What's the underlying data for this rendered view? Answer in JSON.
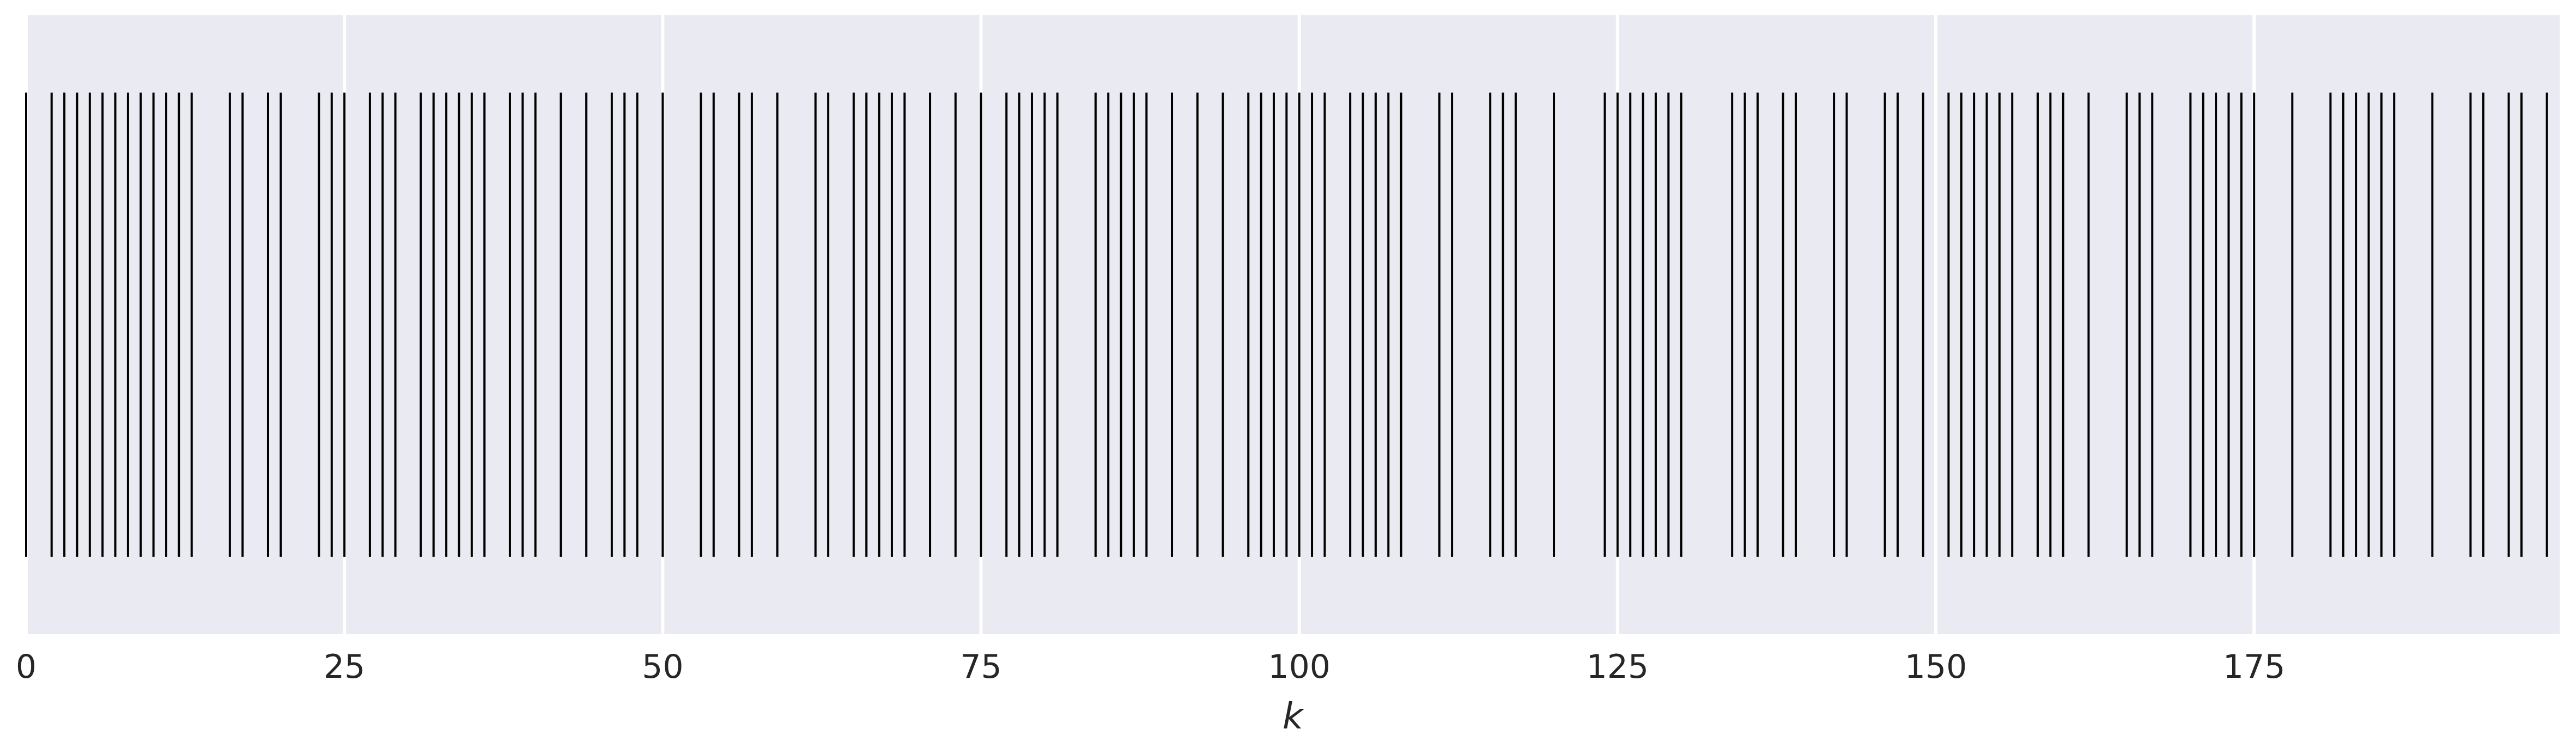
{
  "chart_data": {
    "type": "eventplot",
    "xlabel": "k",
    "xlim": [
      0,
      199
    ],
    "ylim": [
      0.5,
      1.5
    ],
    "xticks": [
      0,
      25,
      50,
      75,
      100,
      125,
      150,
      175
    ],
    "xtick_labels": [
      "0",
      "25",
      "50",
      "75",
      "100",
      "125",
      "150",
      "175"
    ],
    "grid": true,
    "event_line": {
      "center": 1.0,
      "length": 0.75
    },
    "events": [
      0,
      2,
      3,
      4,
      5,
      6,
      7,
      8,
      9,
      10,
      11,
      12,
      13,
      16,
      17,
      19,
      20,
      23,
      24,
      25,
      27,
      28,
      29,
      31,
      32,
      33,
      34,
      35,
      36,
      38,
      39,
      40,
      42,
      44,
      46,
      47,
      48,
      50,
      53,
      54,
      56,
      57,
      59,
      62,
      63,
      65,
      66,
      67,
      68,
      69,
      71,
      73,
      75,
      77,
      78,
      79,
      80,
      81,
      84,
      85,
      86,
      87,
      88,
      90,
      92,
      94,
      96,
      97,
      98,
      99,
      100,
      101,
      102,
      104,
      105,
      106,
      107,
      108,
      111,
      112,
      115,
      116,
      117,
      120,
      124,
      125,
      126,
      127,
      128,
      129,
      130,
      134,
      135,
      136,
      138,
      139,
      142,
      143,
      146,
      147,
      149,
      151,
      152,
      153,
      154,
      155,
      156,
      158,
      159,
      160,
      162,
      165,
      166,
      167,
      170,
      171,
      172,
      173,
      174,
      175,
      178,
      181,
      182,
      183,
      184,
      185,
      186,
      189,
      192,
      193,
      195,
      196,
      198
    ]
  },
  "colors": {
    "background": "#eaeaf2",
    "grid": "#ffffff",
    "event": "#000000",
    "text": "#262626"
  }
}
